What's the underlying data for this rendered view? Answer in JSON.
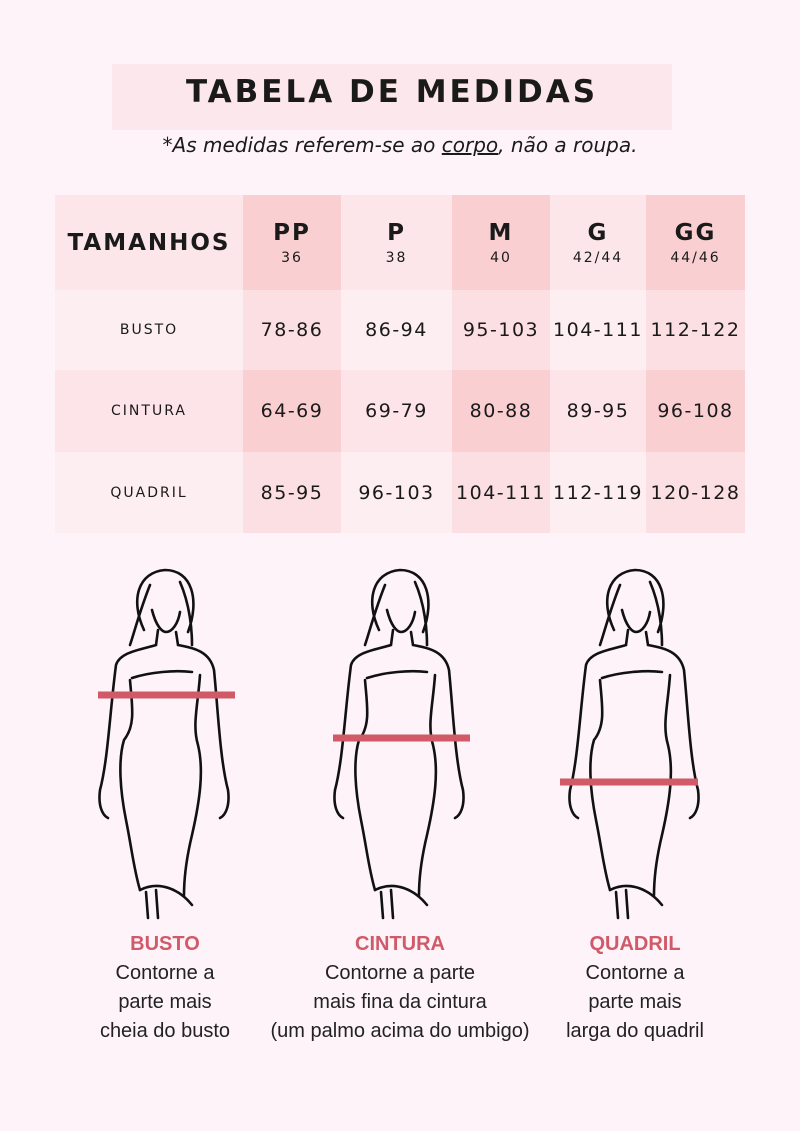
{
  "title": "TABELA DE MEDIDAS",
  "subtitle": {
    "prefix": "*As medidas referem-se ao ",
    "emphasis": "corpo",
    "suffix": ", não a roupa."
  },
  "colors": {
    "background": "#fdf3f8",
    "dark_cell": "#f9cfd1",
    "light_cell": "#fde6ea",
    "accent": "#d05a68"
  },
  "table": {
    "corner": "TAMANHOS",
    "sizes": [
      {
        "label": "PP",
        "number": "36"
      },
      {
        "label": "P",
        "number": "38"
      },
      {
        "label": "M",
        "number": "40"
      },
      {
        "label": "G",
        "number": "42/44"
      },
      {
        "label": "GG",
        "number": "44/46"
      }
    ],
    "rows": [
      {
        "label": "BUSTO",
        "values": [
          "78-86",
          "86-94",
          "95-103",
          "104-111",
          "112-122"
        ]
      },
      {
        "label": "CINTURA",
        "values": [
          "64-69",
          "69-79",
          "80-88",
          "89-95",
          "96-108"
        ]
      },
      {
        "label": "QUADRIL",
        "values": [
          "85-95",
          "96-103",
          "104-111",
          "112-119",
          "120-128"
        ]
      }
    ]
  },
  "guides": [
    {
      "title": "BUSTO",
      "lines": [
        "Contorne a",
        "parte mais",
        "cheia do busto"
      ],
      "icon": "woman-figure-bust-icon"
    },
    {
      "title": "CINTURA",
      "lines": [
        "Contorne a parte",
        "mais fina da cintura",
        "(um palmo acima do umbigo)"
      ],
      "icon": "woman-figure-waist-icon"
    },
    {
      "title": "QUADRIL",
      "lines": [
        "Contorne a",
        "parte mais",
        "larga do quadril"
      ],
      "icon": "woman-figure-hip-icon"
    }
  ]
}
